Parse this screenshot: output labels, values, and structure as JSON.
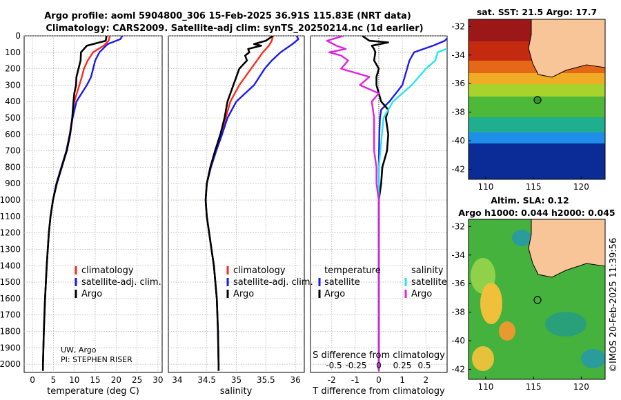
{
  "title_line1": "Argo profile: aoml 5904800_306 15-Feb-2025 36.91S 115.83E (NRT data)",
  "title_line2": "Climatology: CARS2009. Satellite-adj clim: synTS_20250214.nc (1d earlier)",
  "depth_ticks": [
    0,
    100,
    200,
    300,
    400,
    500,
    600,
    700,
    800,
    900,
    1000,
    1100,
    1200,
    1300,
    1400,
    1500,
    1600,
    1700,
    1800,
    1900,
    2000
  ],
  "colors": {
    "climatology": "#ff2a1a",
    "satellite": "#1a1aee",
    "argo": "#000000",
    "sat_salinity": "#22e6f0",
    "argo_salinity": "#e020e0",
    "land": "#f8c598"
  },
  "attribution_line1": "UW, Argo",
  "attribution_line2": "PI: STEPHEN RISER",
  "watermark": "©IMOS 20-Feb-2025 11:39:56",
  "legend1": {
    "items": [
      "climatology",
      "satellite-adj. clim.",
      "Argo"
    ]
  },
  "legend2": {
    "items": [
      "climatology",
      "satellite-adj. clim.",
      "Argo"
    ]
  },
  "legend3": {
    "head_temp": "temperature",
    "head_sal": "salinity",
    "temp_items": [
      "satellite",
      "Argo"
    ],
    "sal_items": [
      "satellite",
      "Argo"
    ]
  },
  "diff_panel": {
    "s_label": "S difference from climatology",
    "s_ticks": [
      "-0.5",
      "-0.25",
      "0",
      "0.25",
      "0.5"
    ]
  },
  "map1": {
    "title": "sat. SST: 21.5 Argo: 17.7",
    "lat_ticks": [
      "-32",
      "-34",
      "-36",
      "-38",
      "-40",
      "-42"
    ],
    "lon_ticks": [
      "110",
      "115",
      "120"
    ]
  },
  "map2": {
    "title_line1": "Altim. SLA: 0.12",
    "title_line2": "Argo h1000: 0.044 h2000: 0.045",
    "lat_ticks": [
      "-32",
      "-34",
      "-36",
      "-38",
      "-40",
      "-42"
    ],
    "lon_ticks": [
      "110",
      "115",
      "120"
    ]
  },
  "chart_data": [
    {
      "type": "line",
      "title": "Temperature profile",
      "xlabel": "temperature (deg C)",
      "ylabel": "",
      "xlim": [
        -2,
        31
      ],
      "ylim": [
        2050,
        0
      ],
      "x_ticks": [
        "0",
        "5",
        "10",
        "15",
        "20",
        "25",
        "30"
      ],
      "series": [
        {
          "name": "climatology",
          "depth": [
            0,
            30,
            60,
            100,
            150,
            200,
            250,
            300,
            400,
            500,
            600,
            700,
            800,
            900,
            1000,
            1100,
            1200,
            1400,
            1600,
            1800,
            2000,
            2040
          ],
          "values": [
            18.5,
            18.2,
            17,
            14.5,
            13.2,
            12.3,
            11.8,
            11.2,
            10,
            9.5,
            8.9,
            8.1,
            6.9,
            5.7,
            4.9,
            4.3,
            3.9,
            3.4,
            3.0,
            2.7,
            2.5,
            2.5
          ]
        },
        {
          "name": "satellite-adj. clim.",
          "depth": [
            0,
            20,
            50,
            100,
            150,
            200,
            250,
            300,
            400,
            500,
            600,
            700,
            800,
            900,
            1000,
            1100,
            1200,
            1400,
            1600,
            1800,
            2000,
            2040
          ],
          "values": [
            21.5,
            21,
            18,
            16,
            15,
            14.5,
            14,
            13,
            10.5,
            9.6,
            8.9,
            8.1,
            6.9,
            5.7,
            4.9,
            4.3,
            3.9,
            3.4,
            3.0,
            2.7,
            2.5,
            2.5
          ]
        },
        {
          "name": "Argo",
          "depth": [
            0,
            30,
            60,
            80,
            100,
            150,
            200,
            250,
            300,
            350,
            400,
            500,
            600,
            700,
            800,
            900,
            1000,
            1100,
            1200,
            1400,
            1600,
            1800,
            2000,
            2040
          ],
          "values": [
            17.7,
            17.5,
            13,
            12.3,
            11.6,
            11.5,
            11,
            10.5,
            10.4,
            10,
            9.8,
            9.5,
            9,
            8.2,
            7,
            5.8,
            4.9,
            4.3,
            3.9,
            3.4,
            3.0,
            2.7,
            2.5,
            2.5
          ]
        }
      ]
    },
    {
      "type": "line",
      "title": "Salinity profile",
      "xlabel": "salinity",
      "ylabel": "",
      "xlim": [
        33.85,
        36.15
      ],
      "ylim": [
        2050,
        0
      ],
      "x_ticks": [
        "34",
        "34.5",
        "35",
        "35.5",
        "36"
      ],
      "series": [
        {
          "name": "climatology",
          "depth": [
            0,
            30,
            60,
            100,
            150,
            200,
            300,
            400,
            500,
            600,
            700,
            800,
            900,
            1000,
            1100,
            1200,
            1300,
            1400,
            1600,
            1800,
            2000,
            2040
          ],
          "values": [
            35.62,
            35.6,
            35.55,
            35.45,
            35.35,
            35.25,
            35.05,
            34.9,
            34.82,
            34.75,
            34.66,
            34.57,
            34.5,
            34.48,
            34.5,
            34.54,
            34.58,
            34.62,
            34.67,
            34.69,
            34.7,
            34.7
          ]
        },
        {
          "name": "satellite-adj. clim.",
          "depth": [
            0,
            20,
            50,
            100,
            150,
            200,
            300,
            400,
            500,
            600,
            700,
            800,
            900,
            1000,
            1100,
            1200,
            1300,
            1400,
            1600,
            1800,
            2000,
            2040
          ],
          "values": [
            36.02,
            36.05,
            35.95,
            35.75,
            35.6,
            35.48,
            35.3,
            35.0,
            34.85,
            34.76,
            34.66,
            34.57,
            34.5,
            34.48,
            34.5,
            34.54,
            34.58,
            34.62,
            34.67,
            34.69,
            34.7,
            34.7
          ]
        },
        {
          "name": "Argo",
          "depth": [
            0,
            30,
            50,
            60,
            80,
            100,
            120,
            150,
            200,
            250,
            300,
            400,
            500,
            600,
            700,
            800,
            900,
            1000,
            1100,
            1200,
            1300,
            1400,
            1600,
            1800,
            2000,
            2040
          ],
          "values": [
            35.62,
            35.5,
            35.3,
            35.42,
            35.2,
            35.22,
            35.15,
            35.18,
            35.05,
            35.0,
            34.95,
            34.85,
            34.8,
            34.73,
            34.64,
            34.56,
            34.5,
            34.48,
            34.5,
            34.54,
            34.58,
            34.62,
            34.67,
            34.69,
            34.7,
            34.7
          ]
        }
      ]
    },
    {
      "type": "line",
      "title": "Difference from climatology",
      "xlabel": "T difference from climatology",
      "ylabel": "",
      "xlim": [
        -2.9,
        2.9
      ],
      "ylim": [
        2050,
        0
      ],
      "x_ticks": [
        "-2",
        "-1",
        "0",
        "1",
        "2"
      ],
      "series": [
        {
          "name": "temperature satellite",
          "depth": [
            0,
            30,
            60,
            100,
            150,
            200,
            300,
            400,
            450,
            500,
            600,
            800,
            1000,
            1500,
            2000,
            2040
          ],
          "values": [
            3.0,
            2.8,
            2.3,
            1.5,
            1.3,
            1.2,
            1.0,
            0.45,
            0.1,
            0.05,
            0.02,
            0.0,
            0.0,
            0.0,
            0.0,
            0.0
          ]
        },
        {
          "name": "temperature Argo",
          "depth": [
            0,
            30,
            40,
            60,
            80,
            100,
            150,
            200,
            250,
            300,
            400,
            450,
            500,
            600,
            700,
            800,
            900,
            1000,
            1200,
            1500,
            2000,
            2040
          ],
          "values": [
            -0.7,
            -0.4,
            0.4,
            -0.3,
            -0.2,
            -0.15,
            -0.2,
            0.0,
            -0.1,
            -0.1,
            0.1,
            0.4,
            0.3,
            0.4,
            0.35,
            0.15,
            0.1,
            0.0,
            0.0,
            0.0,
            0.0,
            0.0
          ]
        },
        {
          "name": "salinity satellite",
          "depth": [
            0,
            30,
            50,
            100,
            150,
            200,
            300,
            400,
            500,
            800,
            1000,
            1500,
            2000,
            2040
          ],
          "values": [
            1.6,
            1.65,
            1.7,
            1.25,
            1.2,
            1.0,
            0.7,
            0.3,
            0.1,
            0.0,
            0.0,
            0.0,
            0.0,
            0.0
          ]
        },
        {
          "name": "salinity Argo",
          "depth": [
            0,
            30,
            60,
            80,
            100,
            120,
            150,
            200,
            250,
            300,
            350,
            400,
            500,
            600,
            700,
            800,
            900,
            1000,
            1200,
            1500,
            2000,
            2040
          ],
          "values": [
            -0.75,
            -1.1,
            -0.9,
            -0.7,
            -1.05,
            -0.8,
            -0.65,
            -0.8,
            -0.2,
            -0.4,
            0.0,
            -0.15,
            -0.1,
            -0.1,
            -0.1,
            -0.05,
            -0.05,
            0.0,
            0.0,
            0.0,
            0.0,
            0.0
          ]
        }
      ]
    }
  ]
}
